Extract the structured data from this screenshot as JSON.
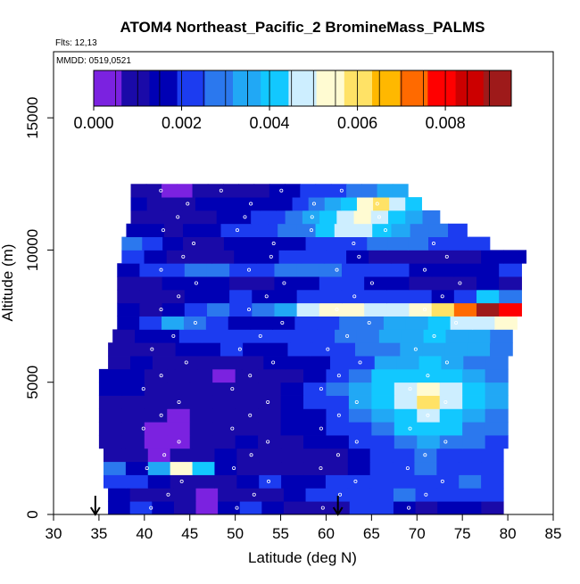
{
  "chart_data": {
    "type": "heatmap",
    "title": "ATOM4 Northeast_Pacific_2 BromineMass_PALMS",
    "flights_label": "Flts: 12,13",
    "dates_label": "MMDD: 0519,0521",
    "xlabel": "Latitude (deg N)",
    "ylabel": "Altitude (m)",
    "xlim": [
      30,
      85
    ],
    "ylim": [
      0,
      17500
    ],
    "x_ticks": [
      "30",
      "35",
      "40",
      "45",
      "50",
      "55",
      "60",
      "65",
      "70",
      "75",
      "80",
      "85"
    ],
    "y_ticks": [
      "0",
      "5000",
      "10000",
      "15000"
    ],
    "colorbar": {
      "range": [
        0.0,
        0.0095
      ],
      "ticks": [
        "0.000",
        "0.002",
        "0.004",
        "0.006",
        "0.008"
      ],
      "tick_values": [
        0.0,
        0.002,
        0.004,
        0.006,
        0.008
      ],
      "colors": [
        "#7b22e0",
        "#1a0aa8",
        "#0000b4",
        "#1c3cf0",
        "#2b78ee",
        "#21a8f5",
        "#12c8ff",
        "#cdeeff",
        "#fffbd2",
        "#ffe266",
        "#ffb800",
        "#ff6a00",
        "#ff0000",
        "#cc0000",
        "#9e1a1a"
      ]
    },
    "arrows_lat": [
      34.6,
      61.3
    ],
    "bands": [
      {
        "alt": 0,
        "lat_start": 36,
        "lat_end": 79.5,
        "values": [
          0.0014,
          0.0025,
          0.0018,
          0.0008,
          0.0003,
          0.0018,
          0.0025,
          0.0015,
          0.0012,
          0.001,
          0.0012,
          0.002,
          0.0025,
          0.0015,
          0.0012,
          0.0018,
          0.0015,
          0.0009
        ]
      },
      {
        "alt": 500,
        "lat_start": 36,
        "lat_end": 79.5,
        "values": [
          0.0015,
          0.0009,
          0.0012,
          0.0008,
          0.0004,
          0.001,
          0.0007,
          0.0012,
          0.0018,
          0.0022,
          0.0025,
          0.0022,
          0.0025,
          0.0028,
          0.0025,
          0.0022,
          0.002,
          0.0025
        ]
      },
      {
        "alt": 1000,
        "lat_start": 35.5,
        "lat_end": 79.5,
        "values": [
          0.0022,
          0.002,
          0.0015,
          0.001,
          0.0008,
          0.0012,
          0.0015,
          0.002,
          0.0018,
          0.0015,
          0.0022,
          0.0025,
          0.0025,
          0.002,
          0.0022,
          0.0025,
          0.0028,
          0.0025
        ]
      },
      {
        "alt": 1500,
        "lat_start": 35.5,
        "lat_end": 79.5,
        "values": [
          0.0028,
          0.0015,
          0.0035,
          0.0055,
          0.0038,
          0.0018,
          0.0012,
          0.0008,
          0.0008,
          0.0007,
          0.0008,
          0.0015,
          0.002,
          0.0025,
          0.0028,
          0.0025,
          0.0022,
          0.0025
        ]
      },
      {
        "alt": 2000,
        "lat_start": 35.5,
        "lat_end": 79.5,
        "values": [
          0.0012,
          0.0008,
          0.0005,
          0.0008,
          0.0012,
          0.0015,
          0.0012,
          0.0008,
          0.0008,
          0.001,
          0.0012,
          0.0018,
          0.0022,
          0.002,
          0.0028,
          0.0025,
          0.0025,
          0.0022
        ]
      },
      {
        "alt": 2500,
        "lat_start": 35,
        "lat_end": 80,
        "values": [
          0.0012,
          0.001,
          0.0006,
          0.0005,
          0.0008,
          0.0012,
          0.0015,
          0.0012,
          0.0012,
          0.0015,
          0.0018,
          0.002,
          0.0025,
          0.0028,
          0.0035,
          0.003,
          0.0028,
          0.0025
        ]
      },
      {
        "alt": 3000,
        "lat_start": 35,
        "lat_end": 80,
        "values": [
          0.0011,
          0.001,
          0.0006,
          0.0004,
          0.0008,
          0.001,
          0.001,
          0.0012,
          0.0015,
          0.0018,
          0.002,
          0.0025,
          0.003,
          0.0038,
          0.004,
          0.0038,
          0.003,
          0.0028
        ]
      },
      {
        "alt": 3500,
        "lat_start": 35,
        "lat_end": 80,
        "values": [
          0.0012,
          0.001,
          0.0008,
          0.0006,
          0.0008,
          0.001,
          0.0012,
          0.0012,
          0.0014,
          0.0018,
          0.0022,
          0.0028,
          0.0035,
          0.0042,
          0.0048,
          0.0042,
          0.0035,
          0.003
        ]
      },
      {
        "alt": 4000,
        "lat_start": 35,
        "lat_end": 80,
        "values": [
          0.0012,
          0.0012,
          0.001,
          0.0008,
          0.0008,
          0.0008,
          0.001,
          0.0012,
          0.0015,
          0.002,
          0.0025,
          0.0032,
          0.004,
          0.0048,
          0.0058,
          0.0048,
          0.0038,
          0.0032
        ]
      },
      {
        "alt": 4500,
        "lat_start": 35,
        "lat_end": 80,
        "values": [
          0.0014,
          0.0014,
          0.0012,
          0.001,
          0.0008,
          0.0008,
          0.001,
          0.0012,
          0.0015,
          0.0022,
          0.0028,
          0.0035,
          0.0042,
          0.005,
          0.0052,
          0.0045,
          0.0038,
          0.0032
        ]
      },
      {
        "alt": 5000,
        "lat_start": 35,
        "lat_end": 80,
        "values": [
          0.0015,
          0.0015,
          0.0012,
          0.001,
          0.0008,
          0.0006,
          0.0007,
          0.0008,
          0.001,
          0.0015,
          0.002,
          0.003,
          0.0038,
          0.0042,
          0.0042,
          0.004,
          0.0035,
          0.003
        ]
      },
      {
        "alt": 5500,
        "lat_start": 36,
        "lat_end": 80,
        "values": [
          0.0012,
          0.0015,
          0.0012,
          0.0012,
          0.001,
          0.001,
          0.0012,
          0.0015,
          0.0015,
          0.0018,
          0.002,
          0.0025,
          0.0032,
          0.0035,
          0.0038,
          0.0035,
          0.003,
          0.0028
        ]
      },
      {
        "alt": 6000,
        "lat_start": 36,
        "lat_end": 80.5,
        "values": [
          0.001,
          0.0012,
          0.0012,
          0.0015,
          0.0018,
          0.002,
          0.0018,
          0.0018,
          0.002,
          0.0022,
          0.0025,
          0.0028,
          0.003,
          0.0032,
          0.0035,
          0.0035,
          0.0032,
          0.003
        ]
      },
      {
        "alt": 6500,
        "lat_start": 36.5,
        "lat_end": 80.5,
        "values": [
          0.0012,
          0.0014,
          0.0015,
          0.002,
          0.0022,
          0.0025,
          0.0025,
          0.0022,
          0.0022,
          0.0025,
          0.0028,
          0.003,
          0.0032,
          0.0035,
          0.0038,
          0.0035,
          0.0032,
          0.003
        ]
      },
      {
        "alt": 7000,
        "lat_start": 37,
        "lat_end": 81,
        "values": [
          0.0015,
          0.0025,
          0.0035,
          0.003,
          0.0025,
          0.0018,
          0.0015,
          0.0018,
          0.002,
          0.0025,
          0.0028,
          0.003,
          0.0032,
          0.0035,
          0.004,
          0.0045,
          0.0048,
          0.0055
        ]
      },
      {
        "alt": 7500,
        "lat_start": 37,
        "lat_end": 81.5,
        "values": [
          0.0015,
          0.0012,
          0.0018,
          0.0025,
          0.0028,
          0.0025,
          0.0028,
          0.0035,
          0.0045,
          0.0055,
          0.0052,
          0.005,
          0.005,
          0.0055,
          0.006,
          0.007,
          0.009,
          0.0078
        ]
      },
      {
        "alt": 8000,
        "lat_start": 37,
        "lat_end": 81.5,
        "values": [
          0.0008,
          0.001,
          0.0012,
          0.0015,
          0.0018,
          0.002,
          0.0018,
          0.0018,
          0.002,
          0.0022,
          0.0025,
          0.0025,
          0.0022,
          0.002,
          0.0018,
          0.0025,
          0.004,
          0.003
        ]
      },
      {
        "alt": 8500,
        "lat_start": 37,
        "lat_end": 81.5,
        "values": [
          0.0012,
          0.0012,
          0.0015,
          0.0018,
          0.0015,
          0.0012,
          0.0012,
          0.0015,
          0.0018,
          0.002,
          0.002,
          0.0018,
          0.0015,
          0.0012,
          0.001,
          0.0012,
          0.0015,
          0.0012
        ]
      },
      {
        "alt": 9000,
        "lat_start": 37,
        "lat_end": 81.5,
        "values": [
          0.0018,
          0.0022,
          0.0025,
          0.0028,
          0.0028,
          0.0025,
          0.0025,
          0.0028,
          0.003,
          0.0028,
          0.0025,
          0.0022,
          0.002,
          0.0018,
          0.0015,
          0.0015,
          0.0018,
          0.0022
        ]
      },
      {
        "alt": 9500,
        "lat_start": 37.5,
        "lat_end": 82,
        "values": [
          0.0022,
          0.0018,
          0.0012,
          0.001,
          0.0012,
          0.0015,
          0.0018,
          0.002,
          0.0022,
          0.002,
          0.0015,
          0.0012,
          0.001,
          0.0008,
          0.001,
          0.0012,
          0.0015,
          0.0018
        ]
      },
      {
        "alt": 10000,
        "lat_start": 37.5,
        "lat_end": 78,
        "values": [
          0.0028,
          0.0022,
          0.0015,
          0.0012,
          0.0012,
          0.0015,
          0.0018,
          0.0015,
          0.0018,
          0.0022,
          0.0025,
          0.0025,
          0.0028,
          0.003,
          0.0028,
          0.0025,
          0.0022,
          0.002
        ]
      },
      {
        "alt": 10500,
        "lat_start": 38,
        "lat_end": 75.5,
        "values": [
          0.0018,
          0.0015,
          0.0012,
          0.0015,
          0.0018,
          0.002,
          0.0022,
          0.0025,
          0.0028,
          0.003,
          0.0038,
          0.0045,
          0.0045,
          0.004,
          0.0035,
          0.003,
          0.0028,
          0.0025
        ]
      },
      {
        "alt": 11000,
        "lat_start": 38.5,
        "lat_end": 72.5,
        "values": [
          0.0012,
          0.001,
          0.0008,
          0.001,
          0.0012,
          0.0015,
          0.0018,
          0.002,
          0.0022,
          0.0028,
          0.0035,
          0.0042,
          0.0048,
          0.0055,
          0.0045,
          0.0038,
          0.0032,
          0.003
        ]
      },
      {
        "alt": 11500,
        "lat_start": 38.5,
        "lat_end": 70.5,
        "values": [
          0.0015,
          0.0012,
          0.001,
          0.0012,
          0.0015,
          0.0018,
          0.0018,
          0.0015,
          0.0015,
          0.0018,
          0.0022,
          0.0028,
          0.0035,
          0.0042,
          0.0052,
          0.0058,
          0.0048,
          0.004
        ]
      },
      {
        "alt": 12000,
        "lat_start": 38.5,
        "lat_end": 69,
        "values": [
          0.0012,
          0.0008,
          0.0006,
          0.0006,
          0.0008,
          0.0008,
          0.001,
          0.0012,
          0.0012,
          0.0015,
          0.0018,
          0.002,
          0.0022,
          0.0025,
          0.0028,
          0.003,
          0.0032,
          0.0035
        ]
      }
    ]
  }
}
